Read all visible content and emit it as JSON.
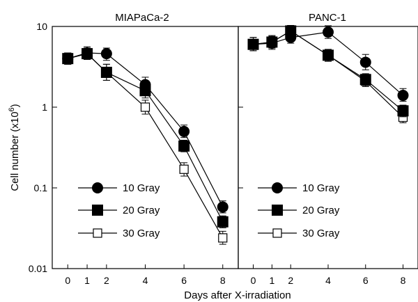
{
  "chart_data": {
    "type": "line",
    "ylabel_main": "Cell number (x10",
    "ylabel_sup": "6",
    "ylabel_end": ")",
    "xlabel": "Days after X-irradiation",
    "y_scale": "log",
    "ylim": [
      0.01,
      10
    ],
    "y_ticks": [
      {
        "value": 10,
        "label": "10"
      },
      {
        "value": 1,
        "label": "1"
      },
      {
        "value": 0.1,
        "label": "0.1"
      },
      {
        "value": 0.01,
        "label": "0.01"
      }
    ],
    "xlim": [
      -0.8,
      8.8
    ],
    "x_ticks": [
      {
        "value": 0,
        "label": "0"
      },
      {
        "value": 1,
        "label": "1"
      },
      {
        "value": 2,
        "label": "2"
      },
      {
        "value": 4,
        "label": "4"
      },
      {
        "value": 6,
        "label": "6"
      },
      {
        "value": 8,
        "label": "8"
      }
    ],
    "panels": [
      {
        "title": "MIAPaCa-2",
        "series": [
          {
            "name": "10 Gray",
            "marker": "filled-circle",
            "x": [
              0,
              1,
              2,
              4,
              6,
              8
            ],
            "y": [
              4.0,
              4.7,
              4.6,
              1.9,
              0.5,
              0.058
            ],
            "err_low": [
              3.4,
              3.9,
              3.8,
              1.55,
              0.42,
              0.049
            ],
            "err_high": [
              4.7,
              5.6,
              5.4,
              2.35,
              0.6,
              0.069
            ]
          },
          {
            "name": "20 Gray",
            "marker": "filled-square",
            "x": [
              0,
              1,
              2,
              4,
              6,
              8
            ],
            "y": [
              4.0,
              4.6,
              2.7,
              1.6,
              0.33,
              0.038
            ],
            "err_low": [
              3.4,
              3.9,
              2.15,
              1.3,
              0.28,
              0.032
            ],
            "err_high": [
              4.7,
              5.4,
              3.4,
              1.95,
              0.39,
              0.045
            ]
          },
          {
            "name": "30 Gray",
            "marker": "open-square",
            "x": [
              0,
              1,
              2,
              4,
              6,
              8
            ],
            "y": [
              4.0,
              4.6,
              2.7,
              1.0,
              0.17,
              0.024
            ],
            "err_low": [
              3.4,
              3.9,
              2.15,
              0.82,
              0.14,
              0.02
            ],
            "err_high": [
              4.7,
              5.4,
              3.4,
              1.22,
              0.205,
              0.029
            ]
          }
        ]
      },
      {
        "title": "PANC-1",
        "series": [
          {
            "name": "10 Gray",
            "marker": "filled-circle",
            "x": [
              0,
              1,
              2,
              4,
              6,
              8
            ],
            "y": [
              6.0,
              6.2,
              7.3,
              8.5,
              3.6,
              1.4
            ],
            "err_low": [
              5.0,
              5.2,
              6.2,
              7.1,
              2.9,
              1.18
            ],
            "err_high": [
              7.3,
              7.5,
              8.6,
              10.2,
              4.5,
              1.7
            ]
          },
          {
            "name": "20 Gray",
            "marker": "filled-square",
            "x": [
              0,
              1,
              2,
              4,
              6,
              8
            ],
            "y": [
              6.0,
              6.4,
              8.8,
              4.4,
              2.2,
              0.9
            ],
            "err_low": [
              5.0,
              5.4,
              7.4,
              3.7,
              1.85,
              0.76
            ],
            "err_high": [
              7.3,
              7.7,
              10.3,
              5.2,
              2.6,
              1.06
            ]
          },
          {
            "name": "30 Gray",
            "marker": "open-square",
            "x": [
              0,
              1,
              2,
              4,
              6,
              8
            ],
            "y": [
              6.0,
              6.4,
              8.8,
              4.4,
              2.1,
              0.75
            ],
            "err_low": [
              5.0,
              5.4,
              7.4,
              3.7,
              1.8,
              0.64
            ],
            "err_high": [
              7.3,
              7.7,
              10.3,
              5.2,
              2.5,
              0.88
            ]
          }
        ]
      }
    ],
    "legend": [
      {
        "label": "10 Gray",
        "marker": "filled-circle"
      },
      {
        "label": "20 Gray",
        "marker": "filled-square"
      },
      {
        "label": "30 Gray",
        "marker": "open-square"
      }
    ]
  }
}
